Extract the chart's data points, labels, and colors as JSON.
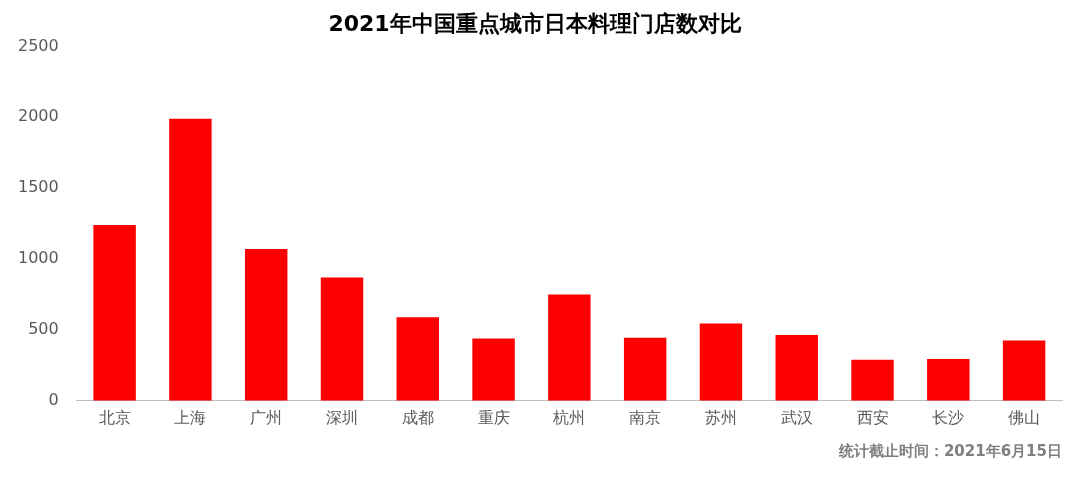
{
  "chart_data": {
    "type": "bar",
    "title": "2021年中国重点城市日本料理门店数对比",
    "categories": [
      "北京",
      "上海",
      "广州",
      "深圳",
      "成都",
      "重庆",
      "杭州",
      "南京",
      "苏州",
      "武汉",
      "西安",
      "长沙",
      "佛山"
    ],
    "values": [
      1240,
      1990,
      1070,
      870,
      590,
      440,
      750,
      445,
      545,
      465,
      290,
      295,
      425
    ],
    "color": "#ff0000",
    "ylim": [
      0,
      2500
    ],
    "yticks": [
      0,
      500,
      1000,
      1500,
      2000,
      2500
    ],
    "grid": false,
    "legend": false,
    "annotations": [
      "统计截止时间：2021年6月15日"
    ]
  }
}
